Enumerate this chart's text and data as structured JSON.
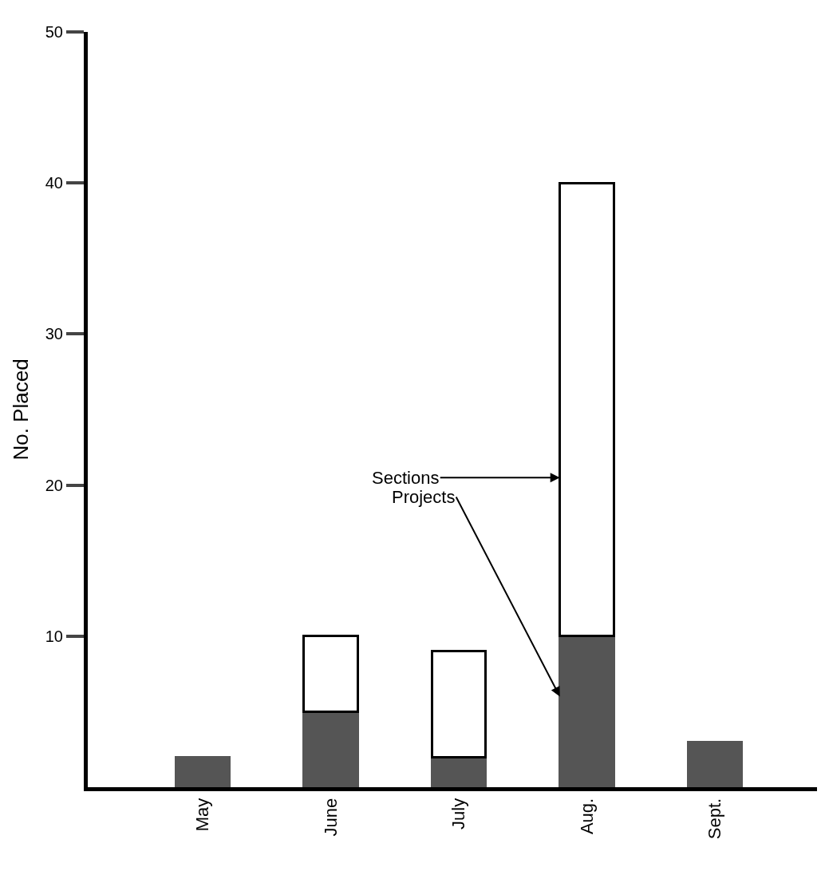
{
  "chart_data": {
    "type": "bar",
    "stacked": true,
    "ylabel": "No. Placed",
    "categories": [
      "May",
      "June",
      "July",
      "Aug.",
      "Sept."
    ],
    "series": [
      {
        "name": "Projects",
        "color": "#555555",
        "values": [
          2,
          5,
          2,
          10,
          3
        ]
      },
      {
        "name": "Sections",
        "color": "#ffffff",
        "values": [
          null,
          5,
          7,
          30,
          null
        ]
      }
    ],
    "ylim": [
      0,
      50
    ],
    "yticks": [
      10,
      20,
      30,
      40,
      50
    ],
    "legend": false
  }
}
